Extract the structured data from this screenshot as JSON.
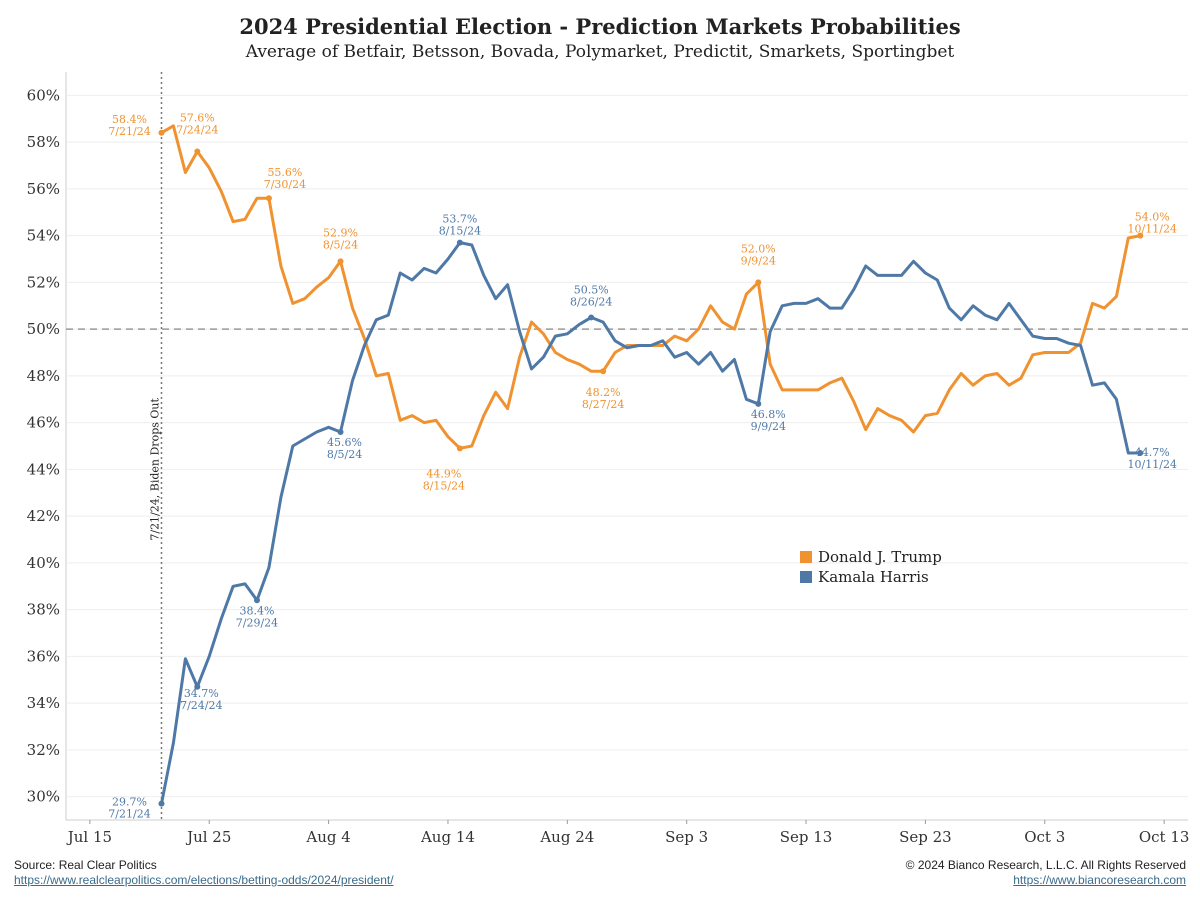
{
  "title": "2024 Presidential Election - Prediction Markets Probabilities",
  "subtitle": "Average of Betfair, Betsson, Bovada, Polymarket, Predictit, Smarkets, Sportingbet",
  "footer": {
    "source_label": "Source: Real Clear Politics",
    "source_url": "https://www.realclearpolitics.com/elections/betting-odds/2024/president/",
    "copyright": "© 2024 Bianco Research, L.L.C. All Rights Reserved",
    "site_url": "https://www.biancoresearch.com"
  },
  "colors": {
    "trump": "#f0922f",
    "harris": "#4e79a7"
  },
  "chart_data": {
    "type": "line",
    "x_axis": {
      "ticks": [
        "Jul 15",
        "Jul 25",
        "Aug 4",
        "Aug 14",
        "Aug 24",
        "Sep 3",
        "Sep 13",
        "Sep 23",
        "Oct 3",
        "Oct 13"
      ],
      "range": [
        "2024-07-13",
        "2024-10-15"
      ]
    },
    "y_axis": {
      "range": [
        29,
        61
      ],
      "ticks": [
        "30%",
        "32%",
        "34%",
        "36%",
        "38%",
        "40%",
        "42%",
        "44%",
        "46%",
        "48%",
        "50%",
        "52%",
        "54%",
        "56%",
        "58%",
        "60%"
      ]
    },
    "grid": true,
    "reference_line": {
      "y": 50,
      "style": "dashed"
    },
    "event_line": {
      "date": "2024-07-21",
      "label": "7/21/24, Biden Drops Out"
    },
    "legend_position": "center-right",
    "series": [
      {
        "name": "Donald J. Trump",
        "color": "#f0922f",
        "points": [
          [
            "2024-07-21",
            58.4
          ],
          [
            "2024-07-22",
            58.7
          ],
          [
            "2024-07-23",
            56.7
          ],
          [
            "2024-07-24",
            57.6
          ],
          [
            "2024-07-25",
            56.9
          ],
          [
            "2024-07-26",
            55.9
          ],
          [
            "2024-07-27",
            54.6
          ],
          [
            "2024-07-28",
            54.7
          ],
          [
            "2024-07-29",
            55.6
          ],
          [
            "2024-07-30",
            55.6
          ],
          [
            "2024-07-31",
            52.7
          ],
          [
            "2024-08-01",
            51.1
          ],
          [
            "2024-08-02",
            51.3
          ],
          [
            "2024-08-03",
            51.8
          ],
          [
            "2024-08-04",
            52.2
          ],
          [
            "2024-08-05",
            52.9
          ],
          [
            "2024-08-06",
            50.9
          ],
          [
            "2024-08-07",
            49.6
          ],
          [
            "2024-08-08",
            48.0
          ],
          [
            "2024-08-09",
            48.1
          ],
          [
            "2024-08-10",
            46.1
          ],
          [
            "2024-08-11",
            46.3
          ],
          [
            "2024-08-12",
            46.0
          ],
          [
            "2024-08-13",
            46.1
          ],
          [
            "2024-08-14",
            45.4
          ],
          [
            "2024-08-15",
            44.9
          ],
          [
            "2024-08-16",
            45.0
          ],
          [
            "2024-08-17",
            46.3
          ],
          [
            "2024-08-18",
            47.3
          ],
          [
            "2024-08-19",
            46.6
          ],
          [
            "2024-08-20",
            48.8
          ],
          [
            "2024-08-21",
            50.3
          ],
          [
            "2024-08-22",
            49.8
          ],
          [
            "2024-08-23",
            49.0
          ],
          [
            "2024-08-24",
            48.7
          ],
          [
            "2024-08-25",
            48.5
          ],
          [
            "2024-08-26",
            48.2
          ],
          [
            "2024-08-27",
            48.2
          ],
          [
            "2024-08-28",
            49.0
          ],
          [
            "2024-08-29",
            49.3
          ],
          [
            "2024-08-30",
            49.3
          ],
          [
            "2024-08-31",
            49.3
          ],
          [
            "2024-09-01",
            49.3
          ],
          [
            "2024-09-02",
            49.7
          ],
          [
            "2024-09-03",
            49.5
          ],
          [
            "2024-09-04",
            50.0
          ],
          [
            "2024-09-05",
            51.0
          ],
          [
            "2024-09-06",
            50.3
          ],
          [
            "2024-09-07",
            50.0
          ],
          [
            "2024-09-08",
            51.5
          ],
          [
            "2024-09-09",
            52.0
          ],
          [
            "2024-09-10",
            48.5
          ],
          [
            "2024-09-11",
            47.4
          ],
          [
            "2024-09-12",
            47.4
          ],
          [
            "2024-09-13",
            47.4
          ],
          [
            "2024-09-14",
            47.4
          ],
          [
            "2024-09-15",
            47.7
          ],
          [
            "2024-09-16",
            47.9
          ],
          [
            "2024-09-17",
            46.9
          ],
          [
            "2024-09-18",
            45.7
          ],
          [
            "2024-09-19",
            46.6
          ],
          [
            "2024-09-20",
            46.3
          ],
          [
            "2024-09-21",
            46.1
          ],
          [
            "2024-09-22",
            45.6
          ],
          [
            "2024-09-23",
            46.3
          ],
          [
            "2024-09-24",
            46.4
          ],
          [
            "2024-09-25",
            47.4
          ],
          [
            "2024-09-26",
            48.1
          ],
          [
            "2024-09-27",
            47.6
          ],
          [
            "2024-09-28",
            48.0
          ],
          [
            "2024-09-29",
            48.1
          ],
          [
            "2024-09-30",
            47.6
          ],
          [
            "2024-10-01",
            47.9
          ],
          [
            "2024-10-02",
            48.9
          ],
          [
            "2024-10-03",
            49.0
          ],
          [
            "2024-10-04",
            49.0
          ],
          [
            "2024-10-05",
            49.0
          ],
          [
            "2024-10-06",
            49.4
          ],
          [
            "2024-10-07",
            51.1
          ],
          [
            "2024-10-08",
            50.9
          ],
          [
            "2024-10-09",
            51.4
          ],
          [
            "2024-10-10",
            53.9
          ],
          [
            "2024-10-11",
            54.0
          ]
        ],
        "annotations": [
          {
            "date": "2024-07-21",
            "value": 58.4,
            "text": "58.4%",
            "date_text": "7/21/24"
          },
          {
            "date": "2024-07-24",
            "value": 57.6,
            "text": "57.6%",
            "date_text": "7/24/24"
          },
          {
            "date": "2024-07-30",
            "value": 55.6,
            "text": "55.6%",
            "date_text": "7/30/24"
          },
          {
            "date": "2024-08-05",
            "value": 52.9,
            "text": "52.9%",
            "date_text": "8/5/24"
          },
          {
            "date": "2024-08-15",
            "value": 44.9,
            "text": "44.9%",
            "date_text": "8/15/24"
          },
          {
            "date": "2024-08-27",
            "value": 48.2,
            "text": "48.2%",
            "date_text": "8/27/24"
          },
          {
            "date": "2024-09-09",
            "value": 52.0,
            "text": "52.0%",
            "date_text": "9/9/24"
          },
          {
            "date": "2024-10-11",
            "value": 54.0,
            "text": "54.0%",
            "date_text": "10/11/24"
          }
        ]
      },
      {
        "name": "Kamala Harris",
        "color": "#4e79a7",
        "points": [
          [
            "2024-07-21",
            29.7
          ],
          [
            "2024-07-22",
            32.3
          ],
          [
            "2024-07-23",
            35.9
          ],
          [
            "2024-07-24",
            34.7
          ],
          [
            "2024-07-25",
            36.0
          ],
          [
            "2024-07-26",
            37.6
          ],
          [
            "2024-07-27",
            39.0
          ],
          [
            "2024-07-28",
            39.1
          ],
          [
            "2024-07-29",
            38.4
          ],
          [
            "2024-07-30",
            39.8
          ],
          [
            "2024-07-31",
            42.8
          ],
          [
            "2024-08-01",
            45.0
          ],
          [
            "2024-08-02",
            45.3
          ],
          [
            "2024-08-03",
            45.6
          ],
          [
            "2024-08-04",
            45.8
          ],
          [
            "2024-08-05",
            45.6
          ],
          [
            "2024-08-06",
            47.8
          ],
          [
            "2024-08-07",
            49.3
          ],
          [
            "2024-08-08",
            50.4
          ],
          [
            "2024-08-09",
            50.6
          ],
          [
            "2024-08-10",
            52.4
          ],
          [
            "2024-08-11",
            52.1
          ],
          [
            "2024-08-12",
            52.6
          ],
          [
            "2024-08-13",
            52.4
          ],
          [
            "2024-08-14",
            53.0
          ],
          [
            "2024-08-15",
            53.7
          ],
          [
            "2024-08-16",
            53.6
          ],
          [
            "2024-08-17",
            52.3
          ],
          [
            "2024-08-18",
            51.3
          ],
          [
            "2024-08-19",
            51.9
          ],
          [
            "2024-08-20",
            49.9
          ],
          [
            "2024-08-21",
            48.3
          ],
          [
            "2024-08-22",
            48.8
          ],
          [
            "2024-08-23",
            49.7
          ],
          [
            "2024-08-24",
            49.8
          ],
          [
            "2024-08-25",
            50.2
          ],
          [
            "2024-08-26",
            50.5
          ],
          [
            "2024-08-27",
            50.3
          ],
          [
            "2024-08-28",
            49.5
          ],
          [
            "2024-08-29",
            49.2
          ],
          [
            "2024-08-30",
            49.3
          ],
          [
            "2024-08-31",
            49.3
          ],
          [
            "2024-09-01",
            49.5
          ],
          [
            "2024-09-02",
            48.8
          ],
          [
            "2024-09-03",
            49.0
          ],
          [
            "2024-09-04",
            48.5
          ],
          [
            "2024-09-05",
            49.0
          ],
          [
            "2024-09-06",
            48.2
          ],
          [
            "2024-09-07",
            48.7
          ],
          [
            "2024-09-08",
            47.0
          ],
          [
            "2024-09-09",
            46.8
          ],
          [
            "2024-09-10",
            49.9
          ],
          [
            "2024-09-11",
            51.0
          ],
          [
            "2024-09-12",
            51.1
          ],
          [
            "2024-09-13",
            51.1
          ],
          [
            "2024-09-14",
            51.3
          ],
          [
            "2024-09-15",
            50.9
          ],
          [
            "2024-09-16",
            50.9
          ],
          [
            "2024-09-17",
            51.7
          ],
          [
            "2024-09-18",
            52.7
          ],
          [
            "2024-09-19",
            52.3
          ],
          [
            "2024-09-20",
            52.3
          ],
          [
            "2024-09-21",
            52.3
          ],
          [
            "2024-09-22",
            52.9
          ],
          [
            "2024-09-23",
            52.4
          ],
          [
            "2024-09-24",
            52.1
          ],
          [
            "2024-09-25",
            50.9
          ],
          [
            "2024-09-26",
            50.4
          ],
          [
            "2024-09-27",
            51.0
          ],
          [
            "2024-09-28",
            50.6
          ],
          [
            "2024-09-29",
            50.4
          ],
          [
            "2024-09-30",
            51.1
          ],
          [
            "2024-10-01",
            50.4
          ],
          [
            "2024-10-02",
            49.7
          ],
          [
            "2024-10-03",
            49.6
          ],
          [
            "2024-10-04",
            49.6
          ],
          [
            "2024-10-05",
            49.4
          ],
          [
            "2024-10-06",
            49.3
          ],
          [
            "2024-10-07",
            47.6
          ],
          [
            "2024-10-08",
            47.7
          ],
          [
            "2024-10-09",
            47.0
          ],
          [
            "2024-10-10",
            44.7
          ],
          [
            "2024-10-11",
            44.7
          ]
        ],
        "annotations": [
          {
            "date": "2024-07-21",
            "value": 29.7,
            "text": "29.7%",
            "date_text": "7/21/24"
          },
          {
            "date": "2024-07-24",
            "value": 34.7,
            "text": "34.7%",
            "date_text": "7/24/24"
          },
          {
            "date": "2024-07-29",
            "value": 38.4,
            "text": "38.4%",
            "date_text": "7/29/24"
          },
          {
            "date": "2024-08-05",
            "value": 45.6,
            "text": "45.6%",
            "date_text": "8/5/24"
          },
          {
            "date": "2024-08-15",
            "value": 53.7,
            "text": "53.7%",
            "date_text": "8/15/24"
          },
          {
            "date": "2024-08-26",
            "value": 50.5,
            "text": "50.5%",
            "date_text": "8/26/24"
          },
          {
            "date": "2024-09-09",
            "value": 46.8,
            "text": "46.8%",
            "date_text": "9/9/24"
          },
          {
            "date": "2024-10-11",
            "value": 44.7,
            "text": "44.7%",
            "date_text": "10/11/24"
          }
        ]
      }
    ]
  }
}
